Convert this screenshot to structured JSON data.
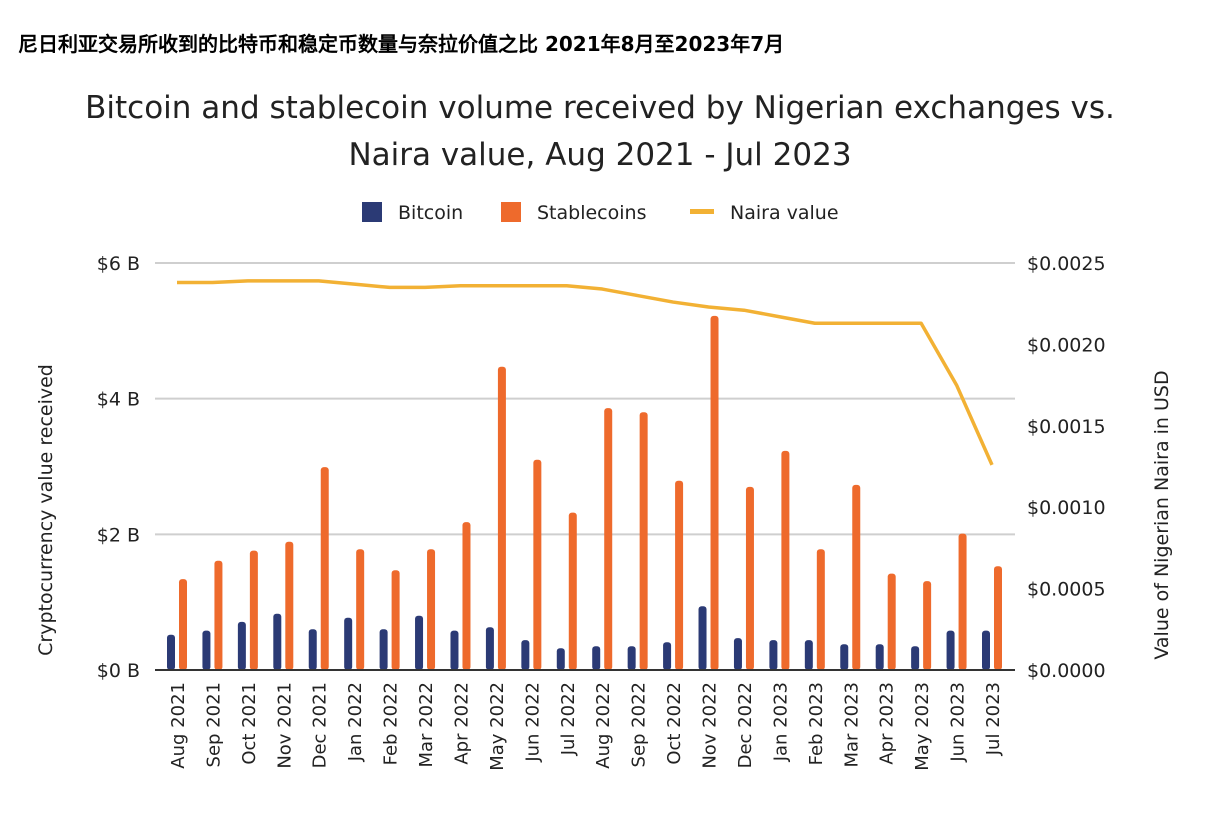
{
  "header": {
    "cn_title": "尼日利亚交易所收到的比特币和稳定币数量与奈拉价值之比 2021年8月至2023年7月"
  },
  "chart_data": {
    "type": "bar",
    "title_lines": [
      "Bitcoin and stablecoin volume received by Nigerian exchanges vs.",
      "Naira value, Aug 2021 - Jul 2023"
    ],
    "ylabel": "Cryptocurrency value received",
    "y2label": "Value of Nigerian Naira in USD",
    "ylim": [
      0,
      6
    ],
    "y_ticks": [
      "$0 B",
      "$2 B",
      "$4 B",
      "$6 B"
    ],
    "y2lim": [
      0,
      0.0025
    ],
    "y2_ticks": [
      "$0.0000",
      "$0.0005",
      "$0.0010",
      "$0.0015",
      "$0.0020",
      "$0.0025"
    ],
    "grid": true,
    "legend_position": "top-center",
    "categories": [
      "Aug 2021",
      "Sep 2021",
      "Oct 2021",
      "Nov 2021",
      "Dec 2021",
      "Jan 2022",
      "Feb 2022",
      "Mar 2022",
      "Apr 2022",
      "May 2022",
      "Jun 2022",
      "Jul 2022",
      "Aug 2022",
      "Sep 2022",
      "Oct 2022",
      "Nov 2022",
      "Dec 2022",
      "Jan 2023",
      "Feb 2023",
      "Mar 2023",
      "Apr 2023",
      "May 2023",
      "Jun 2023",
      "Jul 2023"
    ],
    "series": [
      {
        "name": "Bitcoin",
        "type": "bar",
        "axis": "left",
        "color": "#2b3a75",
        "values": [
          0.52,
          0.58,
          0.71,
          0.83,
          0.6,
          0.77,
          0.6,
          0.8,
          0.58,
          0.63,
          0.44,
          0.32,
          0.35,
          0.35,
          0.41,
          0.94,
          0.47,
          0.44,
          0.44,
          0.38,
          0.38,
          0.35,
          0.58,
          0.58
        ]
      },
      {
        "name": "Stablecoins",
        "type": "bar",
        "axis": "left",
        "color": "#ee6a2c",
        "values": [
          1.34,
          1.61,
          1.76,
          1.89,
          2.99,
          1.78,
          1.47,
          1.78,
          2.18,
          4.47,
          3.1,
          2.32,
          3.86,
          3.8,
          2.79,
          5.22,
          2.7,
          3.23,
          1.78,
          2.73,
          1.42,
          1.31,
          2.01,
          1.53
        ]
      },
      {
        "name": "Naira value",
        "type": "line",
        "axis": "right",
        "color": "#f2b134",
        "values": [
          0.00238,
          0.00238,
          0.00239,
          0.00239,
          0.00239,
          0.00237,
          0.00235,
          0.00235,
          0.00236,
          0.00236,
          0.00236,
          0.00236,
          0.00234,
          0.0023,
          0.00226,
          0.00223,
          0.00221,
          0.00217,
          0.00213,
          0.00213,
          0.00213,
          0.00213,
          0.00175,
          0.00126
        ]
      }
    ]
  }
}
